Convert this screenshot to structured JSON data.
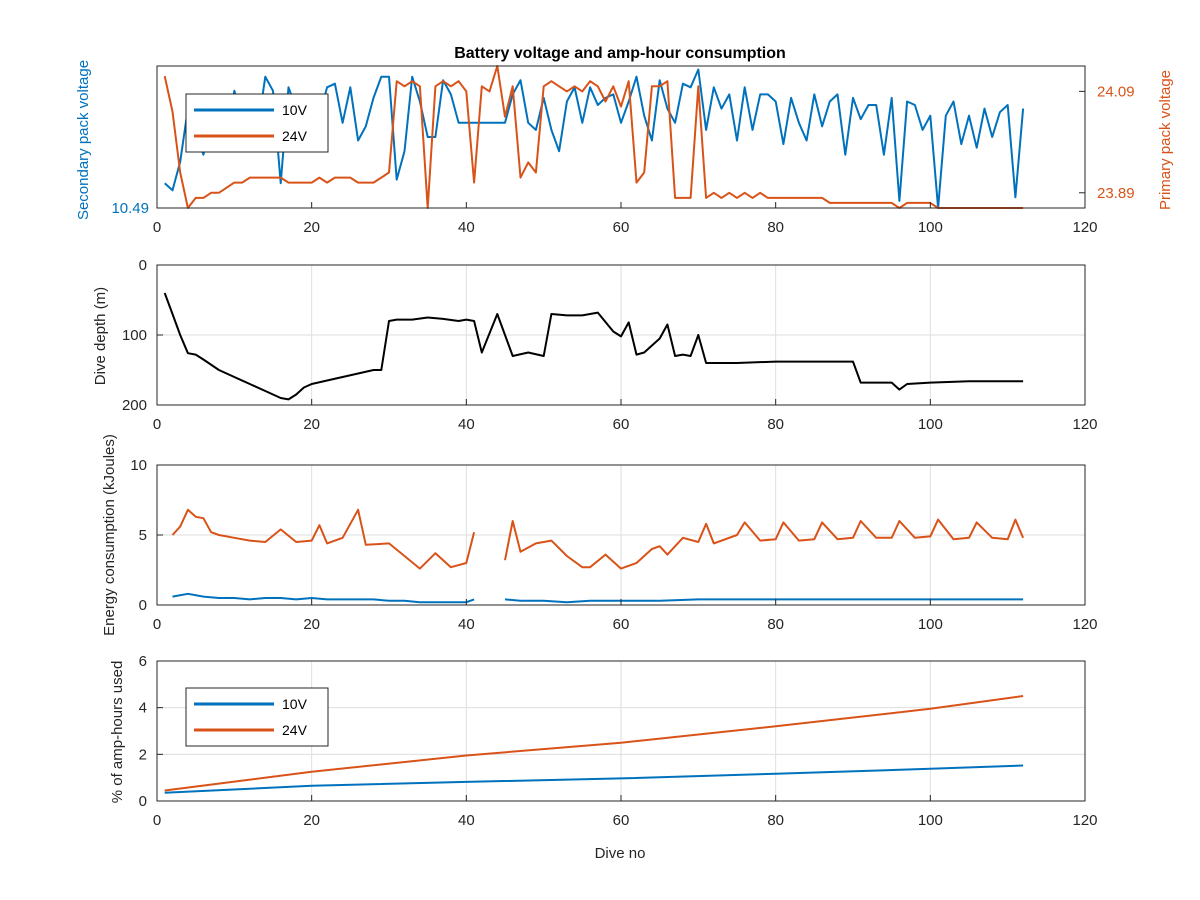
{
  "figure_title": "Battery voltage and amp-hour consumption",
  "colors": {
    "series_10V": "#0072BD",
    "series_24V": "#D95319",
    "depth": "#000000",
    "grid": "#dedede",
    "axis": "#262626"
  },
  "chart_data": [
    {
      "type": "line",
      "id": "voltage",
      "title": "Battery voltage and amp-hour consumption",
      "xlabel": "",
      "ylabel_left": "Secondary pack voltage",
      "ylabel_right": "Primary pack voltage",
      "xlim": [
        0,
        120
      ],
      "xticks": [
        0,
        20,
        40,
        60,
        80,
        100,
        120
      ],
      "ylim_left": [
        10.49,
        10.53
      ],
      "yticks_left": [
        10.49
      ],
      "ylim_right": [
        23.86,
        24.14
      ],
      "yticks_right": [
        23.89,
        24.09
      ],
      "grid": false,
      "legend_position": "top-left",
      "series": [
        {
          "name": "10V",
          "axis": "left",
          "x": [
            1,
            2,
            3,
            4,
            5,
            6,
            7,
            8,
            9,
            10,
            11,
            12,
            13,
            14,
            15,
            16,
            17,
            18,
            19,
            20,
            21,
            22,
            23,
            24,
            25,
            26,
            27,
            28,
            29,
            30,
            31,
            32,
            33,
            34,
            35,
            36,
            37,
            38,
            39,
            40,
            41,
            42,
            43,
            44,
            45,
            46,
            47,
            48,
            49,
            50,
            51,
            52,
            53,
            54,
            55,
            56,
            57,
            58,
            59,
            60,
            61,
            62,
            63,
            64,
            65,
            66,
            67,
            68,
            69,
            70,
            71,
            72,
            73,
            74,
            75,
            76,
            77,
            78,
            79,
            80,
            81,
            82,
            83,
            84,
            85,
            86,
            87,
            88,
            89,
            90,
            91,
            92,
            93,
            94,
            95,
            96,
            97,
            98,
            99,
            100,
            101,
            102,
            103,
            104,
            105,
            106,
            107,
            108,
            109,
            110,
            111,
            112
          ],
          "y": [
            10.497,
            10.495,
            10.503,
            10.518,
            10.512,
            10.505,
            10.515,
            10.52,
            10.508,
            10.523,
            10.516,
            10.521,
            10.512,
            10.527,
            10.523,
            10.497,
            10.524,
            10.518,
            10.51,
            10.513,
            10.516,
            10.524,
            10.525,
            10.514,
            10.524,
            10.509,
            10.513,
            10.521,
            10.527,
            10.527,
            10.498,
            10.506,
            10.527,
            10.52,
            10.51,
            10.51,
            10.526,
            10.522,
            10.514,
            10.514,
            10.514,
            10.514,
            10.514,
            10.514,
            10.514,
            10.522,
            10.526,
            10.514,
            10.512,
            10.521,
            10.512,
            10.506,
            10.52,
            10.524,
            10.514,
            10.524,
            10.519,
            10.521,
            10.522,
            10.514,
            10.52,
            10.527,
            10.516,
            10.509,
            10.526,
            10.518,
            10.514,
            10.525,
            10.524,
            10.529,
            10.512,
            10.524,
            10.518,
            10.522,
            10.509,
            10.524,
            10.512,
            10.522,
            10.522,
            10.52,
            10.508,
            10.521,
            10.514,
            10.509,
            10.522,
            10.513,
            10.52,
            10.522,
            10.505,
            10.521,
            10.515,
            10.519,
            10.519,
            10.505,
            10.521,
            10.492,
            10.52,
            10.519,
            10.512,
            10.516,
            10.49,
            10.516,
            10.52,
            10.508,
            10.516,
            10.507,
            10.518,
            10.51,
            10.517,
            10.519,
            10.493,
            10.518
          ]
        },
        {
          "name": "24V",
          "axis": "right",
          "x": [
            1,
            2,
            3,
            4,
            5,
            6,
            7,
            8,
            9,
            10,
            11,
            12,
            13,
            14,
            15,
            16,
            17,
            18,
            19,
            20,
            21,
            22,
            23,
            24,
            25,
            26,
            27,
            28,
            29,
            30,
            31,
            32,
            33,
            34,
            35,
            36,
            37,
            38,
            39,
            40,
            41,
            42,
            43,
            44,
            45,
            46,
            47,
            48,
            49,
            50,
            51,
            52,
            53,
            54,
            55,
            56,
            57,
            58,
            59,
            60,
            61,
            62,
            63,
            64,
            65,
            66,
            67,
            68,
            69,
            70,
            71,
            72,
            73,
            74,
            75,
            76,
            77,
            78,
            79,
            80,
            81,
            82,
            83,
            84,
            85,
            86,
            87,
            88,
            89,
            90,
            91,
            92,
            93,
            94,
            95,
            96,
            97,
            98,
            99,
            100,
            101,
            102,
            103,
            104,
            105,
            106,
            107,
            108,
            109,
            110,
            111,
            112
          ],
          "y": [
            24.12,
            24.05,
            23.93,
            23.86,
            23.88,
            23.88,
            23.89,
            23.89,
            23.9,
            23.91,
            23.91,
            23.92,
            23.92,
            23.92,
            23.92,
            23.92,
            23.91,
            23.91,
            23.91,
            23.91,
            23.92,
            23.91,
            23.92,
            23.92,
            23.92,
            23.91,
            23.91,
            23.91,
            23.92,
            23.93,
            24.11,
            24.1,
            24.11,
            24.1,
            23.86,
            24.1,
            24.11,
            24.1,
            24.11,
            24.09,
            23.91,
            24.1,
            24.09,
            24.14,
            24.04,
            24.1,
            23.92,
            23.95,
            23.93,
            24.1,
            24.11,
            24.1,
            24.09,
            24.1,
            24.09,
            24.11,
            24.1,
            24.07,
            24.1,
            24.06,
            24.11,
            23.91,
            23.93,
            24.1,
            24.1,
            24.11,
            23.88,
            23.88,
            23.88,
            24.1,
            23.88,
            23.89,
            23.88,
            23.89,
            23.88,
            23.89,
            23.88,
            23.89,
            23.88,
            23.88,
            23.88,
            23.88,
            23.88,
            23.88,
            23.88,
            23.88,
            23.87,
            23.87,
            23.87,
            23.87,
            23.87,
            23.87,
            23.87,
            23.87,
            23.87,
            23.86,
            23.87,
            23.87,
            23.87,
            23.87,
            23.86,
            23.86,
            23.86,
            23.86,
            23.86,
            23.86,
            23.86,
            23.86,
            23.86,
            23.86,
            23.86,
            23.86
          ]
        }
      ]
    },
    {
      "type": "line",
      "id": "depth",
      "title": "",
      "xlabel": "",
      "ylabel": "Dive depth (m)",
      "xlim": [
        0,
        120
      ],
      "xticks": [
        0,
        20,
        40,
        60,
        80,
        100,
        120
      ],
      "ylim": [
        0,
        200
      ],
      "y_reversed": true,
      "yticks": [
        0,
        100,
        200
      ],
      "grid": true,
      "series": [
        {
          "name": "",
          "x": [
            1,
            2,
            3,
            4,
            5,
            6,
            8,
            10,
            12,
            14,
            16,
            17,
            18,
            19,
            20,
            22,
            24,
            26,
            28,
            29,
            30,
            31,
            33,
            35,
            37,
            39,
            40,
            41,
            42,
            44,
            46,
            48,
            50,
            51,
            53,
            55,
            57,
            59,
            60,
            61,
            62,
            63,
            65,
            66,
            67,
            68,
            69,
            70,
            71,
            75,
            80,
            85,
            90,
            91,
            95,
            96,
            97,
            100,
            105,
            110,
            112
          ],
          "y": [
            40,
            70,
            100,
            126,
            128,
            135,
            150,
            160,
            170,
            180,
            190,
            192,
            185,
            175,
            170,
            165,
            160,
            155,
            150,
            150,
            80,
            78,
            78,
            75,
            77,
            80,
            78,
            80,
            125,
            70,
            130,
            125,
            130,
            70,
            72,
            72,
            68,
            95,
            102,
            82,
            128,
            125,
            105,
            85,
            130,
            128,
            130,
            100,
            140,
            140,
            138,
            138,
            138,
            168,
            168,
            178,
            170,
            168,
            166,
            166,
            166
          ]
        }
      ]
    },
    {
      "type": "line",
      "id": "energy",
      "title": "",
      "xlabel": "",
      "ylabel": "Energy consumption (kJoules)",
      "xlim": [
        0,
        120
      ],
      "xticks": [
        0,
        20,
        40,
        60,
        80,
        100,
        120
      ],
      "ylim": [
        0,
        10
      ],
      "yticks": [
        0,
        5,
        10
      ],
      "grid": true,
      "series": [
        {
          "name": "10V",
          "segments": [
            {
              "x": [
                2,
                4,
                6,
                8,
                10,
                12,
                14,
                16,
                18,
                20,
                22,
                24,
                26,
                28,
                30,
                32,
                34,
                36,
                38,
                40,
                41
              ],
              "y": [
                0.6,
                0.8,
                0.6,
                0.5,
                0.5,
                0.4,
                0.5,
                0.5,
                0.4,
                0.5,
                0.4,
                0.4,
                0.4,
                0.4,
                0.3,
                0.3,
                0.2,
                0.2,
                0.2,
                0.2,
                0.4
              ]
            },
            {
              "x": [
                45,
                47,
                50,
                53,
                56,
                60,
                65,
                70,
                75,
                80,
                85,
                90,
                95,
                100,
                105,
                110,
                112
              ],
              "y": [
                0.4,
                0.3,
                0.3,
                0.2,
                0.3,
                0.3,
                0.3,
                0.4,
                0.4,
                0.4,
                0.4,
                0.4,
                0.4,
                0.4,
                0.4,
                0.4,
                0.4
              ]
            }
          ]
        },
        {
          "name": "24V",
          "segments": [
            {
              "x": [
                2,
                3,
                4,
                5,
                6,
                7,
                8,
                10,
                12,
                14,
                16,
                18,
                20,
                21,
                22,
                24,
                26,
                27,
                30,
                32,
                34,
                36,
                38,
                40,
                41
              ],
              "y": [
                5.0,
                5.6,
                6.8,
                6.3,
                6.2,
                5.2,
                5.0,
                4.8,
                4.6,
                4.5,
                5.4,
                4.5,
                4.6,
                5.7,
                4.4,
                4.8,
                6.8,
                4.3,
                4.4,
                3.5,
                2.6,
                3.7,
                2.7,
                3.0,
                5.2
              ]
            },
            {
              "x": [
                45,
                46,
                47,
                49,
                51,
                53,
                55,
                56,
                58,
                60,
                62,
                64,
                65,
                66,
                68,
                70,
                71,
                72,
                75,
                76,
                78,
                80,
                81,
                83,
                85,
                86,
                88,
                90,
                91,
                93,
                95,
                96,
                98,
                100,
                101,
                103,
                105,
                106,
                108,
                110,
                111,
                112
              ],
              "y": [
                3.2,
                6.0,
                3.8,
                4.4,
                4.6,
                3.5,
                2.7,
                2.7,
                3.6,
                2.6,
                3.0,
                4.0,
                4.2,
                3.6,
                4.8,
                4.5,
                5.8,
                4.4,
                5.0,
                5.9,
                4.6,
                4.7,
                5.9,
                4.6,
                4.7,
                5.9,
                4.7,
                4.8,
                6.0,
                4.8,
                4.8,
                6.0,
                4.8,
                4.9,
                6.1,
                4.7,
                4.8,
                5.9,
                4.8,
                4.7,
                6.1,
                4.8
              ]
            }
          ]
        }
      ]
    },
    {
      "type": "line",
      "id": "amphours",
      "title": "",
      "xlabel": "Dive no",
      "ylabel": "% of amp-hours used",
      "xlim": [
        0,
        120
      ],
      "xticks": [
        0,
        20,
        40,
        60,
        80,
        100,
        120
      ],
      "ylim": [
        0,
        6
      ],
      "yticks": [
        0,
        2,
        4,
        6
      ],
      "grid": true,
      "legend_position": "top-left",
      "series": [
        {
          "name": "10V",
          "x": [
            1,
            20,
            40,
            60,
            80,
            100,
            112
          ],
          "y": [
            0.35,
            0.65,
            0.82,
            0.97,
            1.17,
            1.38,
            1.52
          ]
        },
        {
          "name": "24V",
          "x": [
            1,
            20,
            40,
            60,
            80,
            100,
            112
          ],
          "y": [
            0.45,
            1.25,
            1.95,
            2.5,
            3.2,
            3.95,
            4.5
          ]
        }
      ]
    }
  ]
}
